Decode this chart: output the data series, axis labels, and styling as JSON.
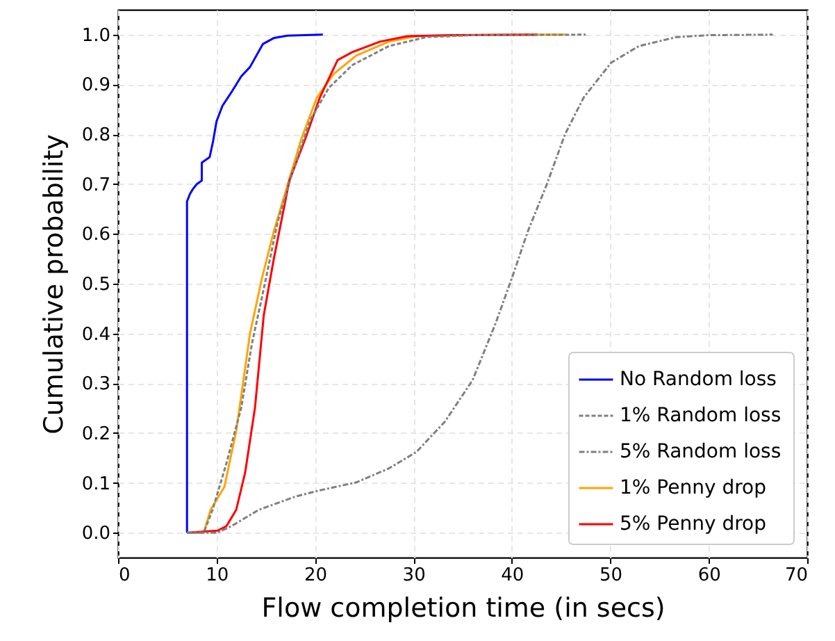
{
  "chart_data": {
    "type": "line",
    "xlabel": "Flow completion time (in secs)",
    "ylabel": "Cumulative probability",
    "xlim": [
      0,
      70
    ],
    "ylim": [
      -0.05,
      1.05
    ],
    "xticks": [
      0,
      10,
      20,
      30,
      40,
      50,
      60,
      70
    ],
    "yticks": [
      {
        "value": 0,
        "label": "0.0"
      },
      {
        "value": 0.1,
        "label": "0.1"
      },
      {
        "value": 0.2,
        "label": "0.2"
      },
      {
        "value": 0.3,
        "label": "0.3"
      },
      {
        "value": 0.4,
        "label": "0.4"
      },
      {
        "value": 0.5,
        "label": "0.5"
      },
      {
        "value": 0.6,
        "label": "0.6"
      },
      {
        "value": 0.7,
        "label": "0.7"
      },
      {
        "value": 0.8,
        "label": "0.8"
      },
      {
        "value": 0.9,
        "label": "0.9"
      },
      {
        "value": 1,
        "label": "1.0"
      }
    ],
    "grid": true,
    "legend": "bottom right",
    "marker": "none",
    "series": [
      {
        "name": "No  Random loss",
        "color": "#0000ff",
        "line_style": "solid",
        "x": [
          7,
          7,
          7.3,
          7.6,
          8,
          8.5,
          8.5,
          9.3,
          9.65,
          10.0,
          10.6,
          11.5,
          12.5,
          13.4,
          14.7,
          15.8,
          17.2,
          20.8
        ],
        "values": [
          0,
          0.665,
          0.68,
          0.69,
          0.7,
          0.707,
          0.743,
          0.754,
          0.786,
          0.826,
          0.857,
          0.884,
          0.916,
          0.935,
          0.981,
          0.993,
          0.998,
          1.0
        ]
      },
      {
        "name": "1% Random loss",
        "color": "#808080",
        "line_style": "dashed",
        "x": [
          7,
          8.7,
          9.6,
          11.0,
          12.5,
          13.6,
          14.8,
          16.2,
          17.6,
          19.5,
          21.4,
          23.8,
          27.5,
          31.3,
          36,
          47.5
        ],
        "values": [
          0,
          0,
          0.046,
          0.139,
          0.25,
          0.38,
          0.49,
          0.623,
          0.716,
          0.828,
          0.893,
          0.939,
          0.977,
          0.995,
          0.999,
          1.0
        ]
      },
      {
        "name": "5% Random loss",
        "color": "#808080",
        "line_style": "dashdot",
        "x": [
          7,
          10.1,
          11.5,
          14.3,
          18.1,
          20.5,
          24.2,
          27.5,
          30.3,
          33.2,
          36.0,
          38.3,
          40.0,
          41.6,
          43.5,
          45.4,
          47.3,
          50.1,
          52.9,
          56.7,
          60,
          66.5
        ],
        "values": [
          0,
          0,
          0.013,
          0.046,
          0.073,
          0.085,
          0.101,
          0.129,
          0.162,
          0.223,
          0.306,
          0.418,
          0.511,
          0.604,
          0.697,
          0.8,
          0.874,
          0.944,
          0.977,
          0.995,
          0.999,
          1.0
        ]
      },
      {
        "name": "1% Penny drop",
        "color": "#ffa500",
        "line_style": "solid",
        "x": [
          7,
          8.7,
          9.4,
          10.8,
          12.0,
          13.4,
          14.6,
          15.8,
          17.2,
          18.6,
          20.2,
          21.9,
          24.2,
          27.5,
          30.3,
          35,
          45.4
        ],
        "values": [
          0,
          0,
          0.046,
          0.092,
          0.204,
          0.4,
          0.51,
          0.604,
          0.697,
          0.79,
          0.874,
          0.921,
          0.958,
          0.986,
          0.997,
          0.999,
          1.0
        ]
      },
      {
        "name": "5% Penny drop",
        "color": "#ff0000",
        "line_style": "solid",
        "x": [
          7,
          10.1,
          11.0,
          12.0,
          12.9,
          13.9,
          14.8,
          15.8,
          17.4,
          19.0,
          20.5,
          22.3,
          23.8,
          26.6,
          29.4,
          34,
          42.6
        ],
        "values": [
          0,
          0.004,
          0.013,
          0.046,
          0.12,
          0.25,
          0.437,
          0.548,
          0.707,
          0.79,
          0.874,
          0.949,
          0.965,
          0.986,
          0.997,
          0.999,
          1.0
        ]
      }
    ]
  }
}
